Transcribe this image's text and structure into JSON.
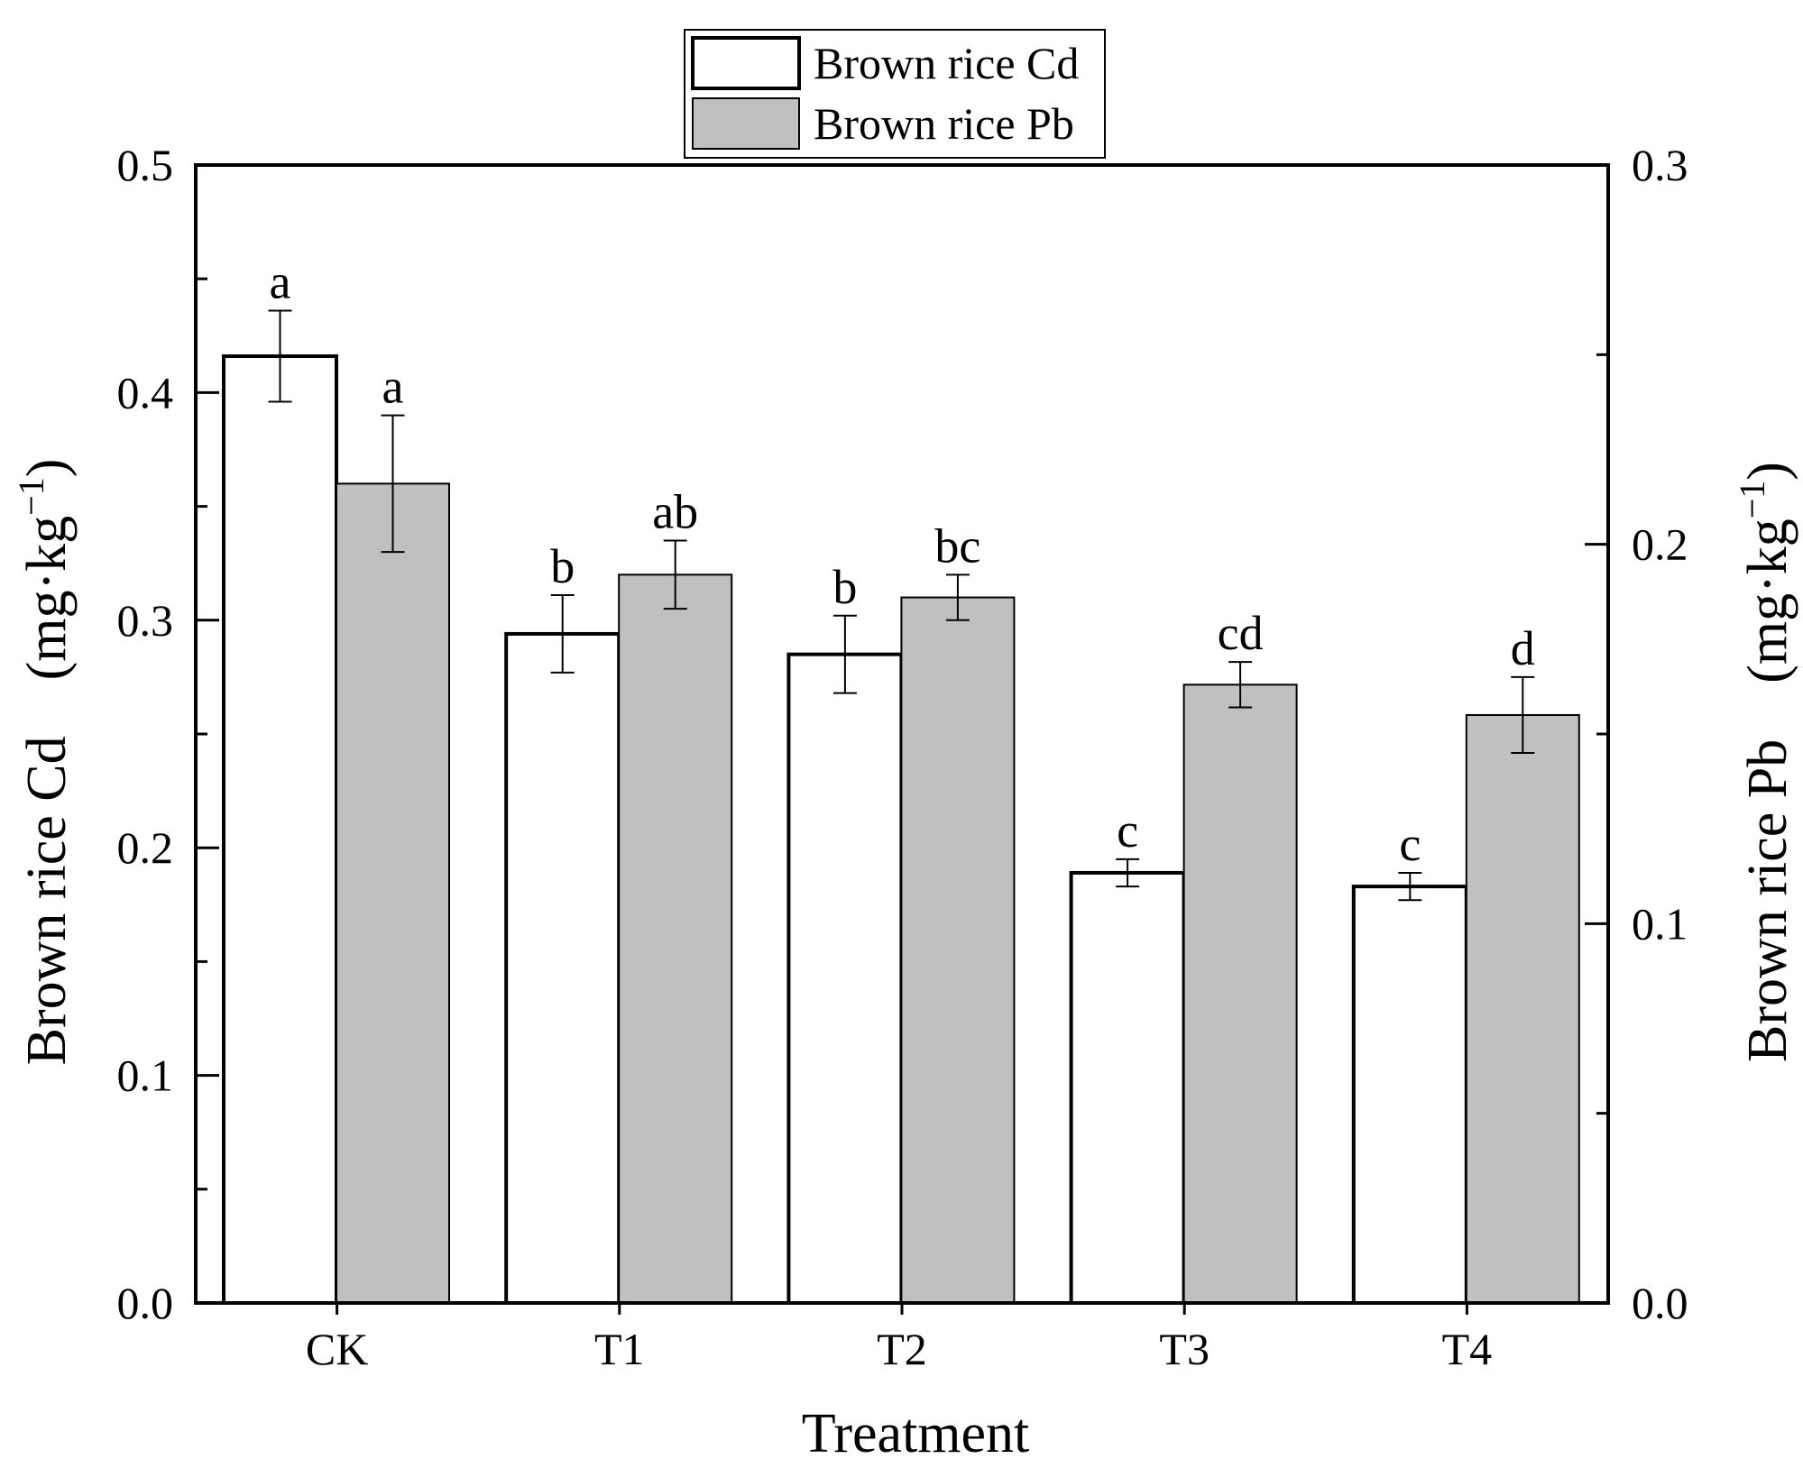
{
  "chart_data": {
    "type": "bar",
    "xlabel": "Treatment",
    "ylabel_left": "Brown rice Cd　(mg·kg",
    "ylabel_right": "Brown rice Pb　(mg·kg",
    "ylabel_superscript": "−1",
    "ylabel_close": ")",
    "categories": [
      "CK",
      "T1",
      "T2",
      "T3",
      "T4"
    ],
    "left_axis": {
      "min": 0.0,
      "max": 0.5,
      "ticks": [
        "0.0",
        "0.1",
        "0.2",
        "0.3",
        "0.4",
        "0.5"
      ]
    },
    "right_axis": {
      "min": 0.0,
      "max": 0.3,
      "ticks": [
        "0.0",
        "0.1",
        "0.2",
        "0.3"
      ]
    },
    "series": [
      {
        "name": "Brown rice Cd",
        "axis": "left",
        "fill": "#ffffff",
        "stroke": "#000000",
        "values": [
          0.416,
          0.294,
          0.285,
          0.189,
          0.183
        ],
        "errors": [
          0.02,
          0.017,
          0.017,
          0.006,
          0.006
        ],
        "letters": [
          "a",
          "b",
          "b",
          "c",
          "c"
        ]
      },
      {
        "name": "Brown rice Pb",
        "axis": "right",
        "fill": "#c0c0c0",
        "stroke": "#000000",
        "values": [
          0.216,
          0.192,
          0.186,
          0.163,
          0.155
        ],
        "errors": [
          0.018,
          0.009,
          0.006,
          0.006,
          0.01
        ],
        "letters": [
          "a",
          "ab",
          "bc",
          "cd",
          "d"
        ]
      }
    ],
    "legend": {
      "position": "top-center"
    },
    "grid": false
  }
}
